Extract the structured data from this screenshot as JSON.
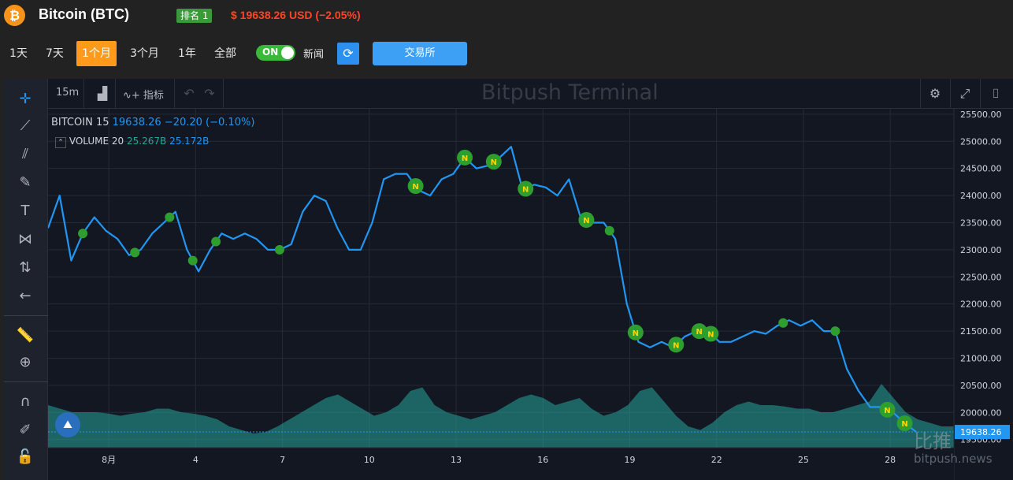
{
  "header": {
    "coin_symbol_glyph": "₿",
    "title": "Bitcoin (BTC)",
    "rank": "排名 1",
    "price_text": "$ 19638.26 USD (−2.05%)"
  },
  "toolbar": {
    "ranges": [
      "1天",
      "7天",
      "1个月",
      "3个月",
      "1年",
      "全部"
    ],
    "active_range": "1个月",
    "toggle_label": "ON",
    "news_label": "新闻",
    "exchange_label": "交易所"
  },
  "terminal": {
    "interval": "15m",
    "indicators_label": "指标",
    "watermark": "Bitpush Terminal",
    "legend": {
      "symbol": "BITCOIN",
      "interval": "15",
      "last": "19638.26",
      "change": "−20.20 (−0.10%)",
      "volume_label": "VOLUME",
      "volume_len": "20",
      "volume_a": "25.267B",
      "volume_b": "25.172B"
    },
    "brand_watermark": "比推",
    "brand_url": "bitpush.news"
  },
  "chart_data": {
    "type": "line",
    "title": "",
    "x_tick_labels": [
      "8月",
      "4",
      "7",
      "10",
      "13",
      "16",
      "19",
      "22",
      "25",
      "28"
    ],
    "y_tick_labels": [
      "25500.00",
      "25000.00",
      "24500.00",
      "24000.00",
      "23500.00",
      "23000.00",
      "22500.00",
      "22000.00",
      "21500.00",
      "21000.00",
      "20500.00",
      "20000.00",
      "19500.00"
    ],
    "ylim": [
      19350,
      25600
    ],
    "last_price_label": "19638.26",
    "series": [
      {
        "name": "BITCOIN",
        "x": [
          0,
          0.4,
          0.8,
          1.2,
          1.6,
          2.0,
          2.4,
          2.8,
          3.2,
          3.6,
          4.0,
          4.4,
          4.8,
          5.2,
          5.6,
          6.0,
          6.4,
          6.8,
          7.2,
          7.6,
          8.0,
          8.4,
          8.8,
          9.2,
          9.6,
          10.0,
          10.4,
          10.8,
          11.2,
          11.6,
          12.0,
          12.4,
          12.8,
          13.2,
          13.6,
          14.0,
          14.4,
          14.8,
          15.2,
          15.6,
          16.0,
          16.4,
          16.8,
          17.2,
          17.6,
          18.0,
          18.4,
          18.8,
          19.2,
          19.6,
          20.0,
          20.4,
          20.8,
          21.2,
          21.6,
          22.0,
          22.4,
          22.8,
          23.2,
          23.6,
          24.0,
          24.4,
          24.8,
          25.2,
          25.6,
          26.0,
          26.4,
          26.8,
          27.2,
          27.6,
          28.0,
          28.4,
          28.8,
          29.2,
          29.6,
          30.0
        ],
        "values": [
          23400,
          24000,
          22800,
          23300,
          23600,
          23350,
          23200,
          22900,
          23000,
          23300,
          23500,
          23700,
          23000,
          22600,
          23000,
          23300,
          23200,
          23300,
          23200,
          23000,
          23000,
          23100,
          23700,
          24000,
          23900,
          23400,
          23000,
          23000,
          23500,
          24300,
          24400,
          24400,
          24100,
          24000,
          24300,
          24400,
          24700,
          24500,
          24550,
          24700,
          24900,
          24100,
          24200,
          24150,
          24000,
          24300,
          23600,
          23500,
          23500,
          23200,
          22000,
          21300,
          21200,
          21300,
          21200,
          21400,
          21500,
          21500,
          21300,
          21300,
          21400,
          21500,
          21450,
          21600,
          21700,
          21600,
          21700,
          21500,
          21500,
          20800,
          20400,
          20100,
          20100,
          20000,
          19800,
          19640
        ]
      }
    ],
    "volume_series": {
      "name": "VOLUME",
      "values": [
        0.6,
        0.55,
        0.5,
        0.5,
        0.5,
        0.48,
        0.45,
        0.48,
        0.5,
        0.55,
        0.55,
        0.5,
        0.48,
        0.45,
        0.4,
        0.3,
        0.25,
        0.2,
        0.22,
        0.3,
        0.4,
        0.5,
        0.6,
        0.7,
        0.75,
        0.65,
        0.55,
        0.45,
        0.5,
        0.6,
        0.8,
        0.85,
        0.6,
        0.5,
        0.45,
        0.4,
        0.45,
        0.5,
        0.6,
        0.7,
        0.75,
        0.7,
        0.6,
        0.65,
        0.7,
        0.55,
        0.45,
        0.5,
        0.6,
        0.8,
        0.85,
        0.65,
        0.45,
        0.3,
        0.25,
        0.35,
        0.5,
        0.6,
        0.65,
        0.6,
        0.6,
        0.58,
        0.55,
        0.55,
        0.5,
        0.5,
        0.55,
        0.6,
        0.65,
        0.9,
        0.7,
        0.5,
        0.4,
        0.35,
        0.3,
        0.3
      ]
    },
    "news_markers": [
      {
        "x": 1.2,
        "labeled": false
      },
      {
        "x": 3.0,
        "labeled": false
      },
      {
        "x": 4.2,
        "labeled": false
      },
      {
        "x": 5.0,
        "labeled": false
      },
      {
        "x": 5.8,
        "labeled": false
      },
      {
        "x": 8.0,
        "labeled": false
      },
      {
        "x": 12.7,
        "labeled": true
      },
      {
        "x": 14.4,
        "labeled": true
      },
      {
        "x": 15.4,
        "labeled": true
      },
      {
        "x": 16.5,
        "labeled": true
      },
      {
        "x": 18.6,
        "labeled": true
      },
      {
        "x": 19.4,
        "labeled": false
      },
      {
        "x": 20.3,
        "labeled": true
      },
      {
        "x": 21.7,
        "labeled": true
      },
      {
        "x": 22.5,
        "labeled": true
      },
      {
        "x": 22.9,
        "labeled": true
      },
      {
        "x": 25.4,
        "labeled": false
      },
      {
        "x": 27.2,
        "labeled": false
      },
      {
        "x": 29.0,
        "labeled": true
      },
      {
        "x": 29.6,
        "labeled": true
      }
    ],
    "colors": {
      "line": "#2196f3",
      "volume": "#26a69a",
      "news_marker": "#2e9e2e",
      "price_label_bg": "#2196f3"
    }
  }
}
